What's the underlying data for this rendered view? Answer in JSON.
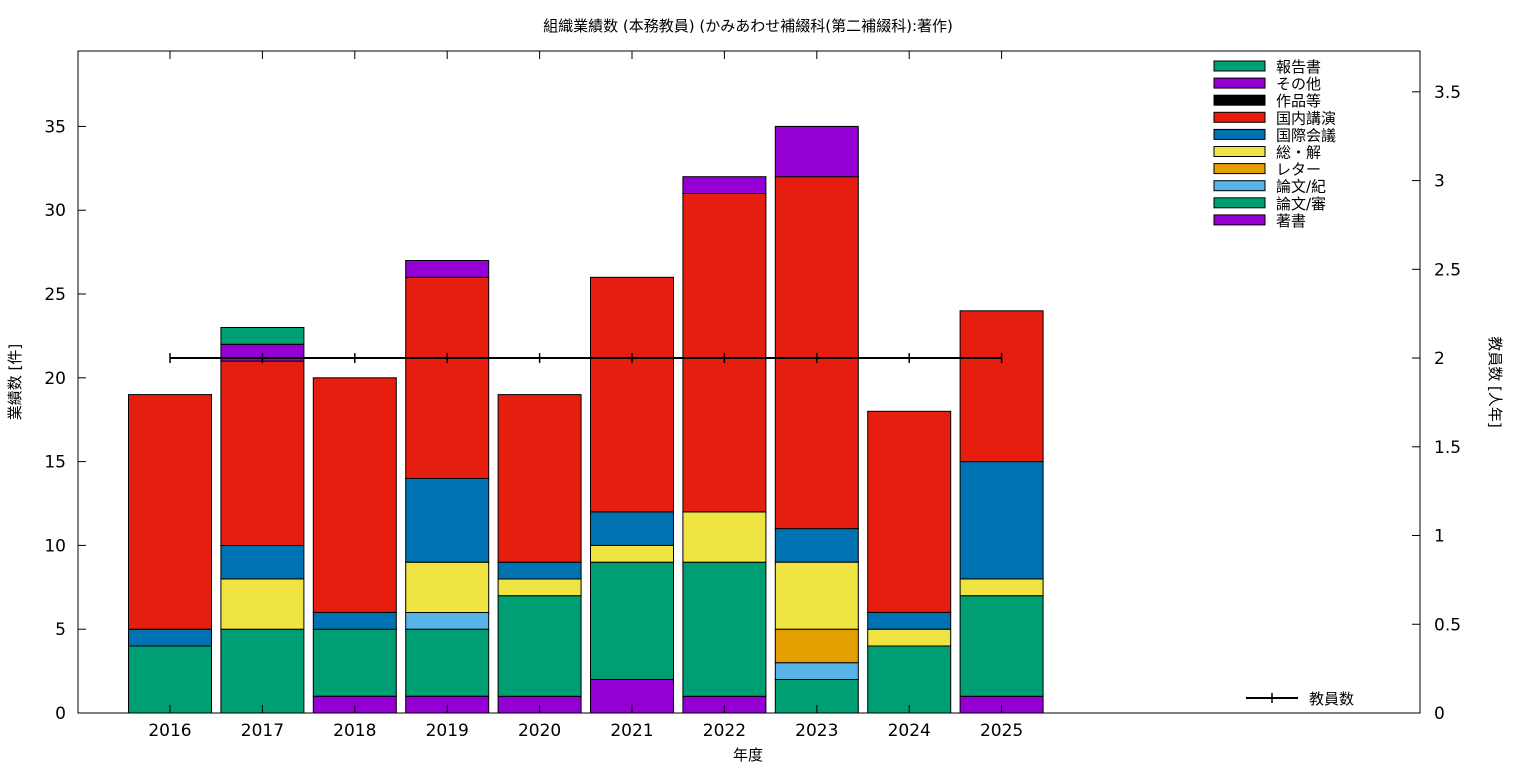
{
  "chart_data": {
    "type": "bar",
    "stacked": true,
    "title": "組織業績数 (本務教員) (かみあわせ補綴科(第二補綴科):著作)",
    "xlabel": "年度",
    "ylabel": "業績数 [件]",
    "y2label": "教員数 [人年]",
    "categories": [
      "2016",
      "2017",
      "2018",
      "2019",
      "2020",
      "2021",
      "2022",
      "2023",
      "2024",
      "2025"
    ],
    "ylim": [
      0,
      39.5
    ],
    "y2lim": [
      0,
      3.73
    ],
    "yticks": [
      "0",
      "5",
      "10",
      "15",
      "20",
      "25",
      "30",
      "35"
    ],
    "y2ticks": [
      "0",
      "0.5",
      "1",
      "1.5",
      "2",
      "2.5",
      "3",
      "3.5"
    ],
    "grid": false,
    "legend_position": "top-right",
    "series": [
      {
        "name": "著書",
        "color": "#9400d3",
        "values": [
          0,
          0,
          1,
          1,
          1,
          2,
          1,
          0,
          0,
          1
        ]
      },
      {
        "name": "論文/審",
        "color": "#009e73",
        "values": [
          4,
          5,
          4,
          4,
          6,
          7,
          8,
          2,
          4,
          6
        ]
      },
      {
        "name": "論文/紀",
        "color": "#56b4e9",
        "values": [
          0,
          0,
          0,
          1,
          0,
          0,
          0,
          1,
          0,
          0
        ]
      },
      {
        "name": "レター",
        "color": "#e69f00",
        "values": [
          0,
          0,
          0,
          0,
          0,
          0,
          0,
          2,
          0,
          0
        ]
      },
      {
        "name": "総・解",
        "color": "#f0e442",
        "values": [
          0,
          3,
          0,
          3,
          1,
          1,
          3,
          4,
          1,
          1
        ]
      },
      {
        "name": "国際会議",
        "color": "#0072b2",
        "values": [
          1,
          2,
          1,
          5,
          1,
          2,
          0,
          2,
          1,
          7
        ]
      },
      {
        "name": "国内講演",
        "color": "#e51e10",
        "values": [
          14,
          11,
          14,
          12,
          10,
          14,
          19,
          21,
          12,
          9
        ]
      },
      {
        "name": "作品等",
        "color": "#000000",
        "values": [
          0,
          0,
          0,
          0,
          0,
          0,
          0,
          0,
          0,
          0
        ]
      },
      {
        "name": "その他",
        "color": "#9400d3",
        "values": [
          0,
          1,
          0,
          1,
          0,
          0,
          1,
          3,
          0,
          0
        ]
      },
      {
        "name": "報告書",
        "color": "#009e73",
        "values": [
          0,
          1,
          0,
          0,
          0,
          0,
          0,
          0,
          0,
          0
        ]
      }
    ],
    "line_series": {
      "name": "教員数",
      "color": "#000000",
      "axis": "y2",
      "values": [
        2,
        2,
        2,
        2,
        2,
        2,
        2,
        2,
        2,
        2
      ]
    }
  }
}
